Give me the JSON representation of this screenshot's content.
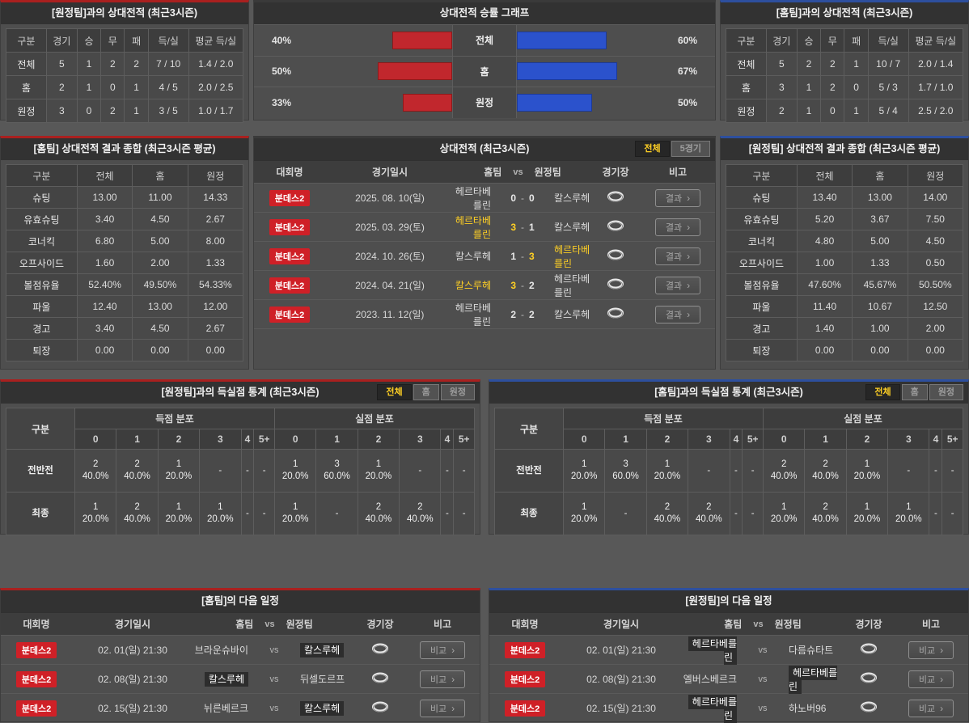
{
  "colors": {
    "accent_red": "#a9201f",
    "accent_blue": "#2d4f9e",
    "bar_red": "#c1272d",
    "bar_blue": "#2b52cc",
    "winner_yellow": "#ffd024",
    "badge_red": "#cf2027"
  },
  "h2h_away": {
    "title": "[원정팀]과의 상대전적 (최근3시즌)",
    "headers": [
      "구분",
      "경기",
      "승",
      "무",
      "패",
      "득/실",
      "평균 득/실"
    ],
    "rows": [
      [
        "전체",
        "5",
        "1",
        "2",
        "2",
        "7 / 10",
        "1.4 / 2.0"
      ],
      [
        "홈",
        "2",
        "1",
        "0",
        "1",
        "4 / 5",
        "2.0 / 2.5"
      ],
      [
        "원정",
        "3",
        "0",
        "2",
        "1",
        "3 / 5",
        "1.0 / 1.7"
      ]
    ]
  },
  "win_chart": {
    "title": "상대전적 승률 그래프",
    "type": "bar",
    "rows": [
      {
        "left_label": "40%",
        "left_value": 40,
        "category": "전체",
        "right_value": 60,
        "right_label": "60%"
      },
      {
        "left_label": "50%",
        "left_value": 50,
        "category": "홈",
        "right_value": 67,
        "right_label": "67%"
      },
      {
        "left_label": "33%",
        "left_value": 33,
        "category": "원정",
        "right_value": 50,
        "right_label": "50%"
      }
    ]
  },
  "h2h_home": {
    "title": "[홈팀]과의 상대전적 (최근3시즌)",
    "headers": [
      "구분",
      "경기",
      "승",
      "무",
      "패",
      "득/실",
      "평균 득/실"
    ],
    "rows": [
      [
        "전체",
        "5",
        "2",
        "2",
        "1",
        "10 / 7",
        "2.0 / 1.4"
      ],
      [
        "홈",
        "3",
        "1",
        "2",
        "0",
        "5 / 3",
        "1.7 / 1.0"
      ],
      [
        "원정",
        "2",
        "1",
        "0",
        "1",
        "5 / 4",
        "2.5 / 2.0"
      ]
    ]
  },
  "summary_home": {
    "title": "[홈팀] 상대전적 결과 종합 (최근3시즌 평균)",
    "headers": [
      "구분",
      "전체",
      "홈",
      "원정"
    ],
    "rows": [
      [
        "슈팅",
        "13.00",
        "11.00",
        "14.33"
      ],
      [
        "유효슈팅",
        "3.40",
        "4.50",
        "2.67"
      ],
      [
        "코너킥",
        "6.80",
        "5.00",
        "8.00"
      ],
      [
        "오프사이드",
        "1.60",
        "2.00",
        "1.33"
      ],
      [
        "볼점유율",
        "52.40%",
        "49.50%",
        "54.33%"
      ],
      [
        "파울",
        "12.40",
        "13.00",
        "12.00"
      ],
      [
        "경고",
        "3.40",
        "4.50",
        "2.67"
      ],
      [
        "퇴장",
        "0.00",
        "0.00",
        "0.00"
      ]
    ]
  },
  "summary_away": {
    "title": "[원정팀] 상대전적 결과 종합 (최근3시즌 평균)",
    "headers": [
      "구분",
      "전체",
      "홈",
      "원정"
    ],
    "rows": [
      [
        "슈팅",
        "13.40",
        "13.00",
        "14.00"
      ],
      [
        "유효슈팅",
        "5.20",
        "3.67",
        "7.50"
      ],
      [
        "코너킥",
        "4.80",
        "5.00",
        "4.50"
      ],
      [
        "오프사이드",
        "1.00",
        "1.33",
        "0.50"
      ],
      [
        "볼점유율",
        "47.60%",
        "45.67%",
        "50.50%"
      ],
      [
        "파울",
        "11.40",
        "10.67",
        "12.50"
      ],
      [
        "경고",
        "1.40",
        "1.00",
        "2.00"
      ],
      [
        "퇴장",
        "0.00",
        "0.00",
        "0.00"
      ]
    ]
  },
  "matches": {
    "title": "상대전적 (최근3시즌)",
    "tabs": [
      "전체",
      "5경기"
    ],
    "headers": {
      "league": "대회명",
      "date": "경기일시",
      "home": "홈팀",
      "vs": "vs",
      "away": "원정팀",
      "stadium": "경기장",
      "note": "비고"
    },
    "score_sep": "-",
    "rows": [
      {
        "league": "분데스2",
        "date": "2025. 08. 10(일)",
        "home": "헤르타베를린",
        "hs": "0",
        "as": "0",
        "away": "칼스루헤",
        "home_win": false,
        "away_win": false,
        "note": "결과"
      },
      {
        "league": "분데스2",
        "date": "2025. 03. 29(토)",
        "home": "헤르타베를린",
        "hs": "3",
        "as": "1",
        "away": "칼스루헤",
        "home_win": true,
        "away_win": false,
        "note": "결과"
      },
      {
        "league": "분데스2",
        "date": "2024. 10. 26(토)",
        "home": "칼스루헤",
        "hs": "1",
        "as": "3",
        "away": "헤르타베를린",
        "home_win": false,
        "away_win": true,
        "note": "결과"
      },
      {
        "league": "분데스2",
        "date": "2024. 04. 21(일)",
        "home": "칼스루헤",
        "hs": "3",
        "as": "2",
        "away": "헤르타베를린",
        "home_win": true,
        "away_win": false,
        "note": "결과"
      },
      {
        "league": "분데스2",
        "date": "2023. 11. 12(일)",
        "home": "헤르타베를린",
        "hs": "2",
        "as": "2",
        "away": "칼스루헤",
        "home_win": false,
        "away_win": false,
        "note": "결과"
      }
    ]
  },
  "goals_away": {
    "title": "[원정팀]과의 득실점 통계 (최근3시즌)",
    "tabs": [
      "전체",
      "홈",
      "원정"
    ],
    "col_label": "구분",
    "group_headers": [
      "득점 분포",
      "실점 분포"
    ],
    "score_cols": [
      "0",
      "1",
      "2",
      "3",
      "4",
      "5+"
    ],
    "rows": [
      {
        "label": "전반전",
        "scored": [
          "2\n40.0%",
          "2\n40.0%",
          "1\n20.0%",
          "-",
          "-",
          "-"
        ],
        "conceded": [
          "1\n20.0%",
          "3\n60.0%",
          "1\n20.0%",
          "-",
          "-",
          "-"
        ]
      },
      {
        "label": "최종",
        "scored": [
          "1\n20.0%",
          "2\n40.0%",
          "1\n20.0%",
          "1\n20.0%",
          "-",
          "-"
        ],
        "conceded": [
          "1\n20.0%",
          "-",
          "2\n40.0%",
          "2\n40.0%",
          "-",
          "-"
        ]
      }
    ]
  },
  "goals_home": {
    "title": "[홈팀]과의 득실점 통계 (최근3시즌)",
    "tabs": [
      "전체",
      "홈",
      "원정"
    ],
    "col_label": "구분",
    "group_headers": [
      "득점 분포",
      "실점 분포"
    ],
    "score_cols": [
      "0",
      "1",
      "2",
      "3",
      "4",
      "5+"
    ],
    "rows": [
      {
        "label": "전반전",
        "scored": [
          "1\n20.0%",
          "3\n60.0%",
          "1\n20.0%",
          "-",
          "-",
          "-"
        ],
        "conceded": [
          "2\n40.0%",
          "2\n40.0%",
          "1\n20.0%",
          "-",
          "-",
          "-"
        ]
      },
      {
        "label": "최종",
        "scored": [
          "1\n20.0%",
          "-",
          "2\n40.0%",
          "2\n40.0%",
          "-",
          "-"
        ],
        "conceded": [
          "1\n20.0%",
          "2\n40.0%",
          "1\n20.0%",
          "1\n20.0%",
          "-",
          "-"
        ]
      }
    ]
  },
  "schedule_home": {
    "title": "[홈팀]의 다음 일정",
    "headers": {
      "league": "대회명",
      "date": "경기일시",
      "home": "홈팀",
      "vs": "vs",
      "away": "원정팀",
      "stadium": "경기장",
      "note": "비고"
    },
    "rows": [
      {
        "league": "분데스2",
        "date": "02. 01(일) 21:30",
        "home": "브라운슈바이",
        "away": "칼스루헤",
        "home_hl": false,
        "away_hl": true,
        "note": "비교"
      },
      {
        "league": "분데스2",
        "date": "02. 08(일) 21:30",
        "home": "칼스루헤",
        "away": "뒤셀도르프",
        "home_hl": true,
        "away_hl": false,
        "note": "비교"
      },
      {
        "league": "분데스2",
        "date": "02. 15(일) 21:30",
        "home": "뉘른베르크",
        "away": "칼스루헤",
        "home_hl": false,
        "away_hl": true,
        "note": "비교"
      }
    ]
  },
  "schedule_away": {
    "title": "[원정팀]의 다음 일정",
    "headers": {
      "league": "대회명",
      "date": "경기일시",
      "home": "홈팀",
      "vs": "vs",
      "away": "원정팀",
      "stadium": "경기장",
      "note": "비고"
    },
    "rows": [
      {
        "league": "분데스2",
        "date": "02. 01(일) 21:30",
        "home": "헤르타베를린",
        "away": "다름슈타트",
        "home_hl": true,
        "away_hl": false,
        "note": "비교"
      },
      {
        "league": "분데스2",
        "date": "02. 08(일) 21:30",
        "home": "엘버스베르크",
        "away": "헤르타베를린",
        "home_hl": false,
        "away_hl": true,
        "note": "비교"
      },
      {
        "league": "분데스2",
        "date": "02. 15(일) 21:30",
        "home": "헤르타베를린",
        "away": "하노버96",
        "home_hl": true,
        "away_hl": false,
        "note": "비교"
      }
    ]
  }
}
